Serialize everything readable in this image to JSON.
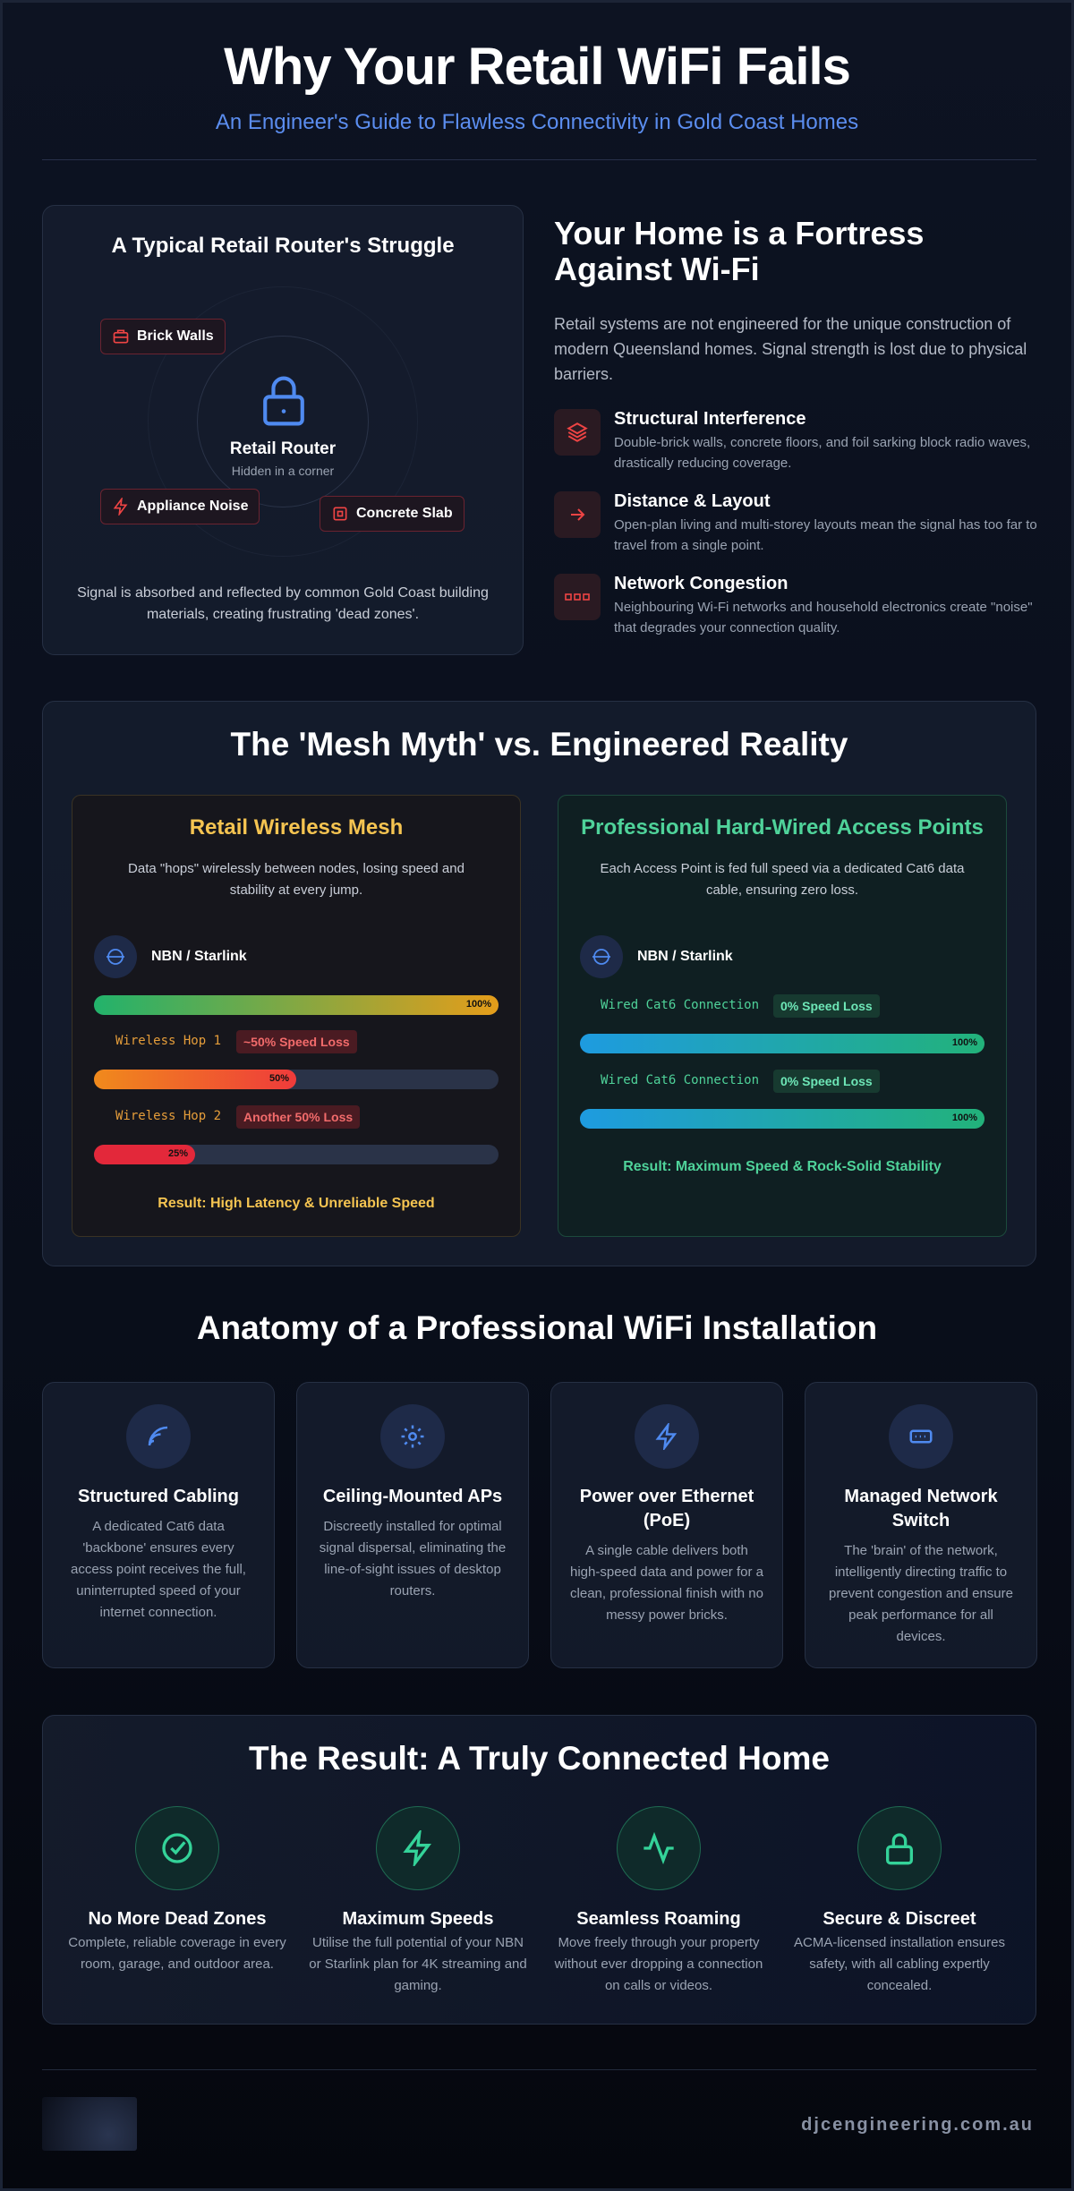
{
  "header": {
    "title": "Why Your Retail WiFi Fails",
    "subtitle": "An Engineer's Guide to Flawless Connectivity in Gold Coast Homes"
  },
  "struggle": {
    "title": "A Typical Retail Router's Struggle",
    "tags": [
      "Brick Walls",
      "Appliance Noise",
      "Concrete Slab"
    ],
    "router": "Retail Router",
    "router_note": "Hidden in a corner",
    "caption": "Signal is absorbed and reflected by common Gold Coast building materials, creating frustrating 'dead zones'."
  },
  "fortress": {
    "title": "Your Home is a Fortress Against Wi-Fi",
    "intro": "Retail systems are not engineered for the unique construction of modern Queensland homes. Signal strength is lost due to physical barriers.",
    "items": [
      {
        "title": "Structural Interference",
        "text": "Double-brick walls, concrete floors, and foil sarking block radio waves, drastically reducing coverage."
      },
      {
        "title": "Distance & Layout",
        "text": "Open-plan living and multi-storey layouts mean the signal has too far to travel from a single point."
      },
      {
        "title": "Network Congestion",
        "text": "Neighbouring Wi-Fi networks and household electronics create \"noise\" that degrades your connection quality."
      }
    ]
  },
  "mesh": {
    "title": "The 'Mesh Myth' vs. Engineered Reality",
    "retail": {
      "title": "Retail Wireless Mesh",
      "text": "Data \"hops\" wirelessly between nodes, losing speed and stability at every jump.",
      "source": "NBN / Starlink",
      "bars": [
        {
          "value": 100,
          "label": "100%"
        },
        {
          "value": 50,
          "label": "50%"
        },
        {
          "value": 25,
          "label": "25%"
        }
      ],
      "hops": [
        {
          "label": "Wireless Hop 1",
          "loss": "~50% Speed Loss"
        },
        {
          "label": "Wireless Hop 2",
          "loss": "Another 50% Loss"
        }
      ],
      "result": "Result: High Latency & Unreliable Speed"
    },
    "pro": {
      "title": "Professional Hard-Wired Access Points",
      "text": "Each Access Point is fed full speed via a dedicated Cat6 data cable, ensuring zero loss.",
      "source": "NBN / Starlink",
      "bars": [
        {
          "value": 100,
          "label": "100%"
        },
        {
          "value": 100,
          "label": "100%"
        }
      ],
      "hops": [
        {
          "label": "Wired Cat6 Connection",
          "loss": "0% Speed Loss"
        },
        {
          "label": "Wired Cat6 Connection",
          "loss": "0% Speed Loss"
        }
      ],
      "result": "Result: Maximum Speed & Rock-Solid Stability"
    }
  },
  "anatomy": {
    "title": "Anatomy of a Professional WiFi Installation",
    "cards": [
      {
        "title": "Structured Cabling",
        "text": "A dedicated Cat6 data 'backbone' ensures every access point receives the full, uninterrupted speed of your internet connection."
      },
      {
        "title": "Ceiling-Mounted APs",
        "text": "Discreetly installed for optimal signal dispersal, eliminating the line-of-sight issues of desktop routers."
      },
      {
        "title": "Power over Ethernet (PoE)",
        "text": "A single cable delivers both high-speed data and power for a clean, professional finish with no messy power bricks."
      },
      {
        "title": "Managed Network Switch",
        "text": "The 'brain' of the network, intelligently directing traffic to prevent congestion and ensure peak performance for all devices."
      }
    ]
  },
  "result": {
    "title": "The Result: A Truly Connected Home",
    "items": [
      {
        "title": "No More Dead Zones",
        "text": "Complete, reliable coverage in every room, garage, and outdoor area."
      },
      {
        "title": "Maximum Speeds",
        "text": "Utilise the full potential of your NBN or Starlink plan for 4K streaming and gaming."
      },
      {
        "title": "Seamless Roaming",
        "text": "Move freely through your property without ever dropping a connection on calls or videos."
      },
      {
        "title": "Secure & Discreet",
        "text": "ACMA-licensed installation ensures safety, with all cabling expertly concealed."
      }
    ]
  },
  "footer": {
    "domain": "djcengineering.com.au"
  }
}
